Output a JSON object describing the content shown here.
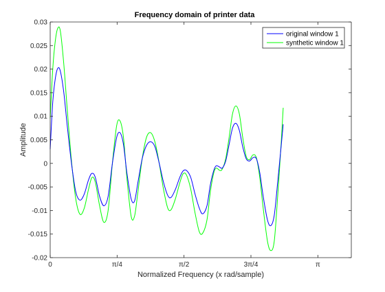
{
  "chart_data": {
    "type": "line",
    "title": "Frequency domain of printer data",
    "xlabel": "Normalized Frequency (x rad/sample)",
    "ylabel": "Amplitude",
    "xlim": [
      0,
      3.5343
    ],
    "ylim": [
      -0.02,
      0.03
    ],
    "x_ticks": [
      {
        "value": 0,
        "label": "0"
      },
      {
        "value": 0.7854,
        "label": "π/4"
      },
      {
        "value": 1.5708,
        "label": "π/2"
      },
      {
        "value": 2.3562,
        "label": "3π/4"
      },
      {
        "value": 3.1416,
        "label": "π"
      }
    ],
    "y_ticks": [
      {
        "value": -0.02,
        "label": "-0.02"
      },
      {
        "value": -0.015,
        "label": "-0.015"
      },
      {
        "value": -0.01,
        "label": "-0.01"
      },
      {
        "value": -0.005,
        "label": "-0.005"
      },
      {
        "value": 0,
        "label": "0"
      },
      {
        "value": 0.005,
        "label": "0.005"
      },
      {
        "value": 0.01,
        "label": "0.01"
      },
      {
        "value": 0.015,
        "label": "0.015"
      },
      {
        "value": 0.02,
        "label": "0.02"
      },
      {
        "value": 0.025,
        "label": "0.025"
      },
      {
        "value": 0.03,
        "label": "0.03"
      }
    ],
    "grid": false,
    "legend_position": "top-right",
    "series": [
      {
        "name": "original window 1",
        "color": "#0000ff",
        "points": [
          [
            0,
            0.003
          ],
          [
            0.03,
            0.013
          ],
          [
            0.06,
            0.018
          ],
          [
            0.09,
            0.0202
          ],
          [
            0.12,
            0.0195
          ],
          [
            0.16,
            0.015
          ],
          [
            0.2,
            0.008
          ],
          [
            0.25,
            0.0
          ],
          [
            0.3,
            -0.006
          ],
          [
            0.35,
            -0.0078
          ],
          [
            0.4,
            -0.0065
          ],
          [
            0.45,
            -0.0035
          ],
          [
            0.49,
            -0.0021
          ],
          [
            0.53,
            -0.003
          ],
          [
            0.58,
            -0.007
          ],
          [
            0.63,
            -0.009
          ],
          [
            0.68,
            -0.007
          ],
          [
            0.73,
            0.0
          ],
          [
            0.78,
            0.0055
          ],
          [
            0.82,
            0.0065
          ],
          [
            0.86,
            0.004
          ],
          [
            0.9,
            -0.002
          ],
          [
            0.95,
            -0.0075
          ],
          [
            0.99,
            -0.008
          ],
          [
            1.03,
            -0.004
          ],
          [
            1.08,
            0.001
          ],
          [
            1.13,
            0.0038
          ],
          [
            1.18,
            0.0046
          ],
          [
            1.23,
            0.0035
          ],
          [
            1.28,
            0.0
          ],
          [
            1.33,
            -0.004
          ],
          [
            1.38,
            -0.0068
          ],
          [
            1.42,
            -0.0072
          ],
          [
            1.47,
            -0.0055
          ],
          [
            1.52,
            -0.003
          ],
          [
            1.56,
            -0.0016
          ],
          [
            1.6,
            -0.0015
          ],
          [
            1.65,
            -0.003
          ],
          [
            1.7,
            -0.0065
          ],
          [
            1.75,
            -0.0095
          ],
          [
            1.79,
            -0.0107
          ],
          [
            1.84,
            -0.009
          ],
          [
            1.88,
            -0.0045
          ],
          [
            1.92,
            -0.0015
          ],
          [
            1.95,
            -0.0005
          ],
          [
            1.99,
            -0.0008
          ],
          [
            2.02,
            -0.001
          ],
          [
            2.06,
            0.0005
          ],
          [
            2.1,
            0.004
          ],
          [
            2.14,
            0.0075
          ],
          [
            2.18,
            0.0085
          ],
          [
            2.22,
            0.007
          ],
          [
            2.26,
            0.0035
          ],
          [
            2.3,
            0.001
          ],
          [
            2.34,
            0.0005
          ],
          [
            2.38,
            0.0012
          ],
          [
            2.42,
            0.001
          ],
          [
            2.46,
            -0.002
          ],
          [
            2.5,
            -0.007
          ],
          [
            2.55,
            -0.012
          ],
          [
            2.59,
            -0.0132
          ],
          [
            2.63,
            -0.011
          ],
          [
            2.67,
            -0.004
          ],
          [
            2.71,
            0.0035
          ],
          [
            2.735,
            0.0083
          ]
        ]
      },
      {
        "name": "synthetic window 1",
        "color": "#00ff00",
        "points": [
          [
            0,
            0.0095
          ],
          [
            0.03,
            0.02
          ],
          [
            0.06,
            0.026
          ],
          [
            0.09,
            0.0287
          ],
          [
            0.12,
            0.028
          ],
          [
            0.16,
            0.021
          ],
          [
            0.2,
            0.0115
          ],
          [
            0.25,
            0.0005
          ],
          [
            0.3,
            -0.0075
          ],
          [
            0.35,
            -0.0108
          ],
          [
            0.4,
            -0.0095
          ],
          [
            0.45,
            -0.0055
          ],
          [
            0.49,
            -0.003
          ],
          [
            0.53,
            -0.004
          ],
          [
            0.58,
            -0.009
          ],
          [
            0.63,
            -0.0125
          ],
          [
            0.68,
            -0.01
          ],
          [
            0.73,
            0.0
          ],
          [
            0.78,
            0.008
          ],
          [
            0.82,
            0.009
          ],
          [
            0.86,
            0.0055
          ],
          [
            0.9,
            -0.003
          ],
          [
            0.95,
            -0.0112
          ],
          [
            0.99,
            -0.0112
          ],
          [
            1.03,
            -0.006
          ],
          [
            1.08,
            0.001
          ],
          [
            1.13,
            0.0055
          ],
          [
            1.18,
            0.0065
          ],
          [
            1.23,
            0.0045
          ],
          [
            1.28,
            0.0
          ],
          [
            1.33,
            -0.0055
          ],
          [
            1.38,
            -0.0095
          ],
          [
            1.42,
            -0.0098
          ],
          [
            1.47,
            -0.0075
          ],
          [
            1.52,
            -0.0042
          ],
          [
            1.56,
            -0.0022
          ],
          [
            1.6,
            -0.0025
          ],
          [
            1.65,
            -0.0055
          ],
          [
            1.7,
            -0.0105
          ],
          [
            1.75,
            -0.0145
          ],
          [
            1.79,
            -0.0148
          ],
          [
            1.84,
            -0.012
          ],
          [
            1.88,
            -0.006
          ],
          [
            1.92,
            -0.002
          ],
          [
            1.95,
            -0.001
          ],
          [
            1.99,
            -0.0015
          ],
          [
            2.02,
            -0.0012
          ],
          [
            2.06,
            0.001
          ],
          [
            2.1,
            0.0055
          ],
          [
            2.14,
            0.0105
          ],
          [
            2.18,
            0.0122
          ],
          [
            2.22,
            0.0105
          ],
          [
            2.26,
            0.0055
          ],
          [
            2.3,
            0.0015
          ],
          [
            2.34,
            0.0008
          ],
          [
            2.38,
            0.0018
          ],
          [
            2.42,
            0.0012
          ],
          [
            2.46,
            -0.003
          ],
          [
            2.5,
            -0.0095
          ],
          [
            2.55,
            -0.0165
          ],
          [
            2.59,
            -0.0185
          ],
          [
            2.63,
            -0.0165
          ],
          [
            2.67,
            -0.007
          ],
          [
            2.71,
            0.004
          ],
          [
            2.735,
            0.0118
          ]
        ]
      }
    ]
  }
}
